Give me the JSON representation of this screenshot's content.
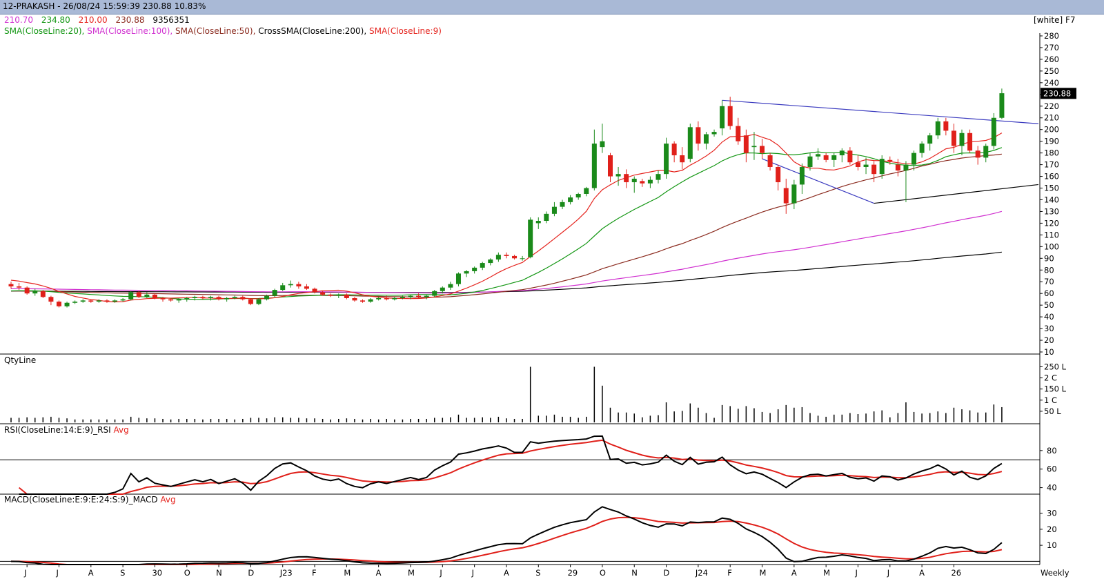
{
  "header": {
    "title": "12-PRAKASH - 26/08/24 15:59:39 230.88 10.83%",
    "ohlc": [
      "210.70",
      "234.80",
      "210.00",
      "230.88",
      "9356351"
    ],
    "indicators": [
      {
        "label": "SMA(CloseLine:20),",
        "color": "#129612"
      },
      {
        "label": "SMA(CloseLine:100),",
        "color": "#d030d0"
      },
      {
        "label": "SMA(CloseLine:50),",
        "color": "#8b2b1f"
      },
      {
        "label": "CrossSMA(CloseLine:200),",
        "color": "#000000"
      },
      {
        "label": "SMA(CloseLine:9)",
        "color": "#e5241e"
      }
    ],
    "theme": "[white] F7"
  },
  "panels": {
    "qty": {
      "label": "QtyLine"
    },
    "rsi": {
      "label": "RSI(CloseLine:14:E:9)_RSI",
      "avg": "Avg"
    },
    "macd": {
      "label": "MACD(CloseLine:E:9:E:24:S:9)_MACD",
      "avg": "Avg"
    }
  },
  "chart_data": {
    "type": "candlestick",
    "timeframe": "Weekly",
    "price_axis": {
      "ylim": [
        10,
        280
      ],
      "ticks": [
        10,
        20,
        30,
        40,
        50,
        60,
        70,
        80,
        90,
        100,
        110,
        120,
        130,
        140,
        150,
        160,
        170,
        180,
        190,
        200,
        210,
        220,
        230,
        240,
        250,
        260,
        270,
        280
      ]
    },
    "last_price": "230.88",
    "x_labels": [
      {
        "i": 2,
        "label": "J"
      },
      {
        "i": 6,
        "label": "J"
      },
      {
        "i": 10,
        "label": "A"
      },
      {
        "i": 14,
        "label": "S"
      },
      {
        "i": 18,
        "label": "30"
      },
      {
        "i": 22,
        "label": "O"
      },
      {
        "i": 26,
        "label": "N"
      },
      {
        "i": 30,
        "label": "D"
      },
      {
        "i": 34,
        "label": "J23"
      },
      {
        "i": 38,
        "label": "F"
      },
      {
        "i": 42,
        "label": "M"
      },
      {
        "i": 46,
        "label": "A"
      },
      {
        "i": 50,
        "label": "M"
      },
      {
        "i": 54,
        "label": "J"
      },
      {
        "i": 58,
        "label": "J"
      },
      {
        "i": 62,
        "label": "A"
      },
      {
        "i": 66,
        "label": "S"
      },
      {
        "i": 70,
        "label": "29"
      },
      {
        "i": 74,
        "label": "O"
      },
      {
        "i": 78,
        "label": "N"
      },
      {
        "i": 82,
        "label": "D"
      },
      {
        "i": 86,
        "label": "J24"
      },
      {
        "i": 90,
        "label": "F"
      },
      {
        "i": 94,
        "label": "M"
      },
      {
        "i": 98,
        "label": "A"
      },
      {
        "i": 102,
        "label": "M"
      },
      {
        "i": 106,
        "label": "J"
      },
      {
        "i": 110,
        "label": "J"
      },
      {
        "i": 114,
        "label": "A"
      },
      {
        "i": 118,
        "label": "26"
      }
    ],
    "candles": [
      [
        68,
        70,
        64,
        66
      ],
      [
        66,
        69,
        63,
        65
      ],
      [
        65,
        66,
        59,
        60
      ],
      [
        60,
        64,
        58,
        62
      ],
      [
        62,
        63,
        56,
        57
      ],
      [
        57,
        58,
        50,
        53
      ],
      [
        53,
        54,
        48,
        49
      ],
      [
        49,
        53,
        48,
        52
      ],
      [
        52,
        54,
        51,
        53
      ],
      [
        53,
        55,
        52,
        54
      ],
      [
        54,
        55,
        52,
        53
      ],
      [
        53,
        55,
        52,
        54
      ],
      [
        54,
        55,
        52,
        53
      ],
      [
        53,
        55,
        52,
        54
      ],
      [
        54,
        56,
        53,
        55
      ],
      [
        55,
        62,
        54,
        61
      ],
      [
        61,
        62,
        56,
        57
      ],
      [
        57,
        61,
        56,
        59
      ],
      [
        59,
        60,
        55,
        56
      ],
      [
        56,
        57,
        53,
        55
      ],
      [
        55,
        56,
        53,
        54
      ],
      [
        54,
        56,
        52,
        55
      ],
      [
        55,
        57,
        53,
        56
      ],
      [
        56,
        58,
        54,
        57
      ],
      [
        57,
        58,
        55,
        56
      ],
      [
        56,
        58,
        54,
        57
      ],
      [
        57,
        58,
        54,
        55
      ],
      [
        55,
        57,
        53,
        56
      ],
      [
        56,
        58,
        55,
        57
      ],
      [
        57,
        58,
        54,
        55
      ],
      [
        55,
        56,
        50,
        51
      ],
      [
        51,
        56,
        50,
        55
      ],
      [
        55,
        59,
        54,
        58
      ],
      [
        58,
        64,
        57,
        63
      ],
      [
        63,
        69,
        62,
        67
      ],
      [
        67,
        71,
        65,
        68
      ],
      [
        68,
        70,
        64,
        66
      ],
      [
        66,
        68,
        63,
        64
      ],
      [
        64,
        65,
        60,
        61
      ],
      [
        61,
        62,
        58,
        59
      ],
      [
        59,
        60,
        57,
        58
      ],
      [
        58,
        60,
        56,
        59
      ],
      [
        59,
        60,
        55,
        56
      ],
      [
        56,
        57,
        53,
        54
      ],
      [
        54,
        55,
        52,
        53
      ],
      [
        53,
        56,
        52,
        55
      ],
      [
        55,
        57,
        54,
        56
      ],
      [
        56,
        58,
        54,
        55
      ],
      [
        55,
        57,
        54,
        56
      ],
      [
        56,
        58,
        55,
        57
      ],
      [
        57,
        59,
        55,
        58
      ],
      [
        58,
        60,
        56,
        57
      ],
      [
        57,
        59,
        55,
        58
      ],
      [
        58,
        63,
        57,
        62
      ],
      [
        62,
        66,
        60,
        65
      ],
      [
        65,
        70,
        63,
        68
      ],
      [
        68,
        78,
        66,
        77
      ],
      [
        77,
        80,
        74,
        79
      ],
      [
        79,
        83,
        77,
        82
      ],
      [
        82,
        87,
        80,
        86
      ],
      [
        86,
        90,
        84,
        89
      ],
      [
        89,
        95,
        87,
        93
      ],
      [
        93,
        95,
        90,
        92
      ],
      [
        92,
        93,
        89,
        90
      ],
      [
        90,
        92,
        88,
        90
      ],
      [
        91,
        125,
        90,
        123
      ],
      [
        120,
        125,
        115,
        122
      ],
      [
        122,
        130,
        120,
        128
      ],
      [
        128,
        138,
        126,
        134
      ],
      [
        134,
        140,
        132,
        138
      ],
      [
        138,
        144,
        136,
        142
      ],
      [
        142,
        146,
        140,
        145
      ],
      [
        145,
        151,
        143,
        150
      ],
      [
        150,
        200,
        148,
        188
      ],
      [
        185,
        205,
        180,
        190
      ],
      [
        178,
        180,
        155,
        160
      ],
      [
        160,
        168,
        152,
        162
      ],
      [
        162,
        166,
        150,
        155
      ],
      [
        155,
        160,
        146,
        158
      ],
      [
        156,
        158,
        151,
        154
      ],
      [
        154,
        160,
        150,
        157
      ],
      [
        157,
        165,
        154,
        162
      ],
      [
        162,
        193,
        158,
        188
      ],
      [
        188,
        190,
        172,
        178
      ],
      [
        178,
        185,
        166,
        172
      ],
      [
        175,
        205,
        172,
        202
      ],
      [
        202,
        207,
        182,
        188
      ],
      [
        188,
        198,
        183,
        196
      ],
      [
        196,
        200,
        194,
        198
      ],
      [
        201,
        225,
        195,
        220
      ],
      [
        220,
        228,
        200,
        203
      ],
      [
        203,
        210,
        187,
        190
      ],
      [
        195,
        200,
        172,
        180
      ],
      [
        185,
        198,
        174,
        186
      ],
      [
        186,
        192,
        175,
        180
      ],
      [
        178,
        180,
        165,
        168
      ],
      [
        168,
        170,
        148,
        155
      ],
      [
        150,
        158,
        128,
        137
      ],
      [
        137,
        157,
        132,
        153
      ],
      [
        153,
        171,
        145,
        168
      ],
      [
        168,
        180,
        165,
        177
      ],
      [
        177,
        184,
        174,
        179
      ],
      [
        178,
        180,
        172,
        174
      ],
      [
        174,
        180,
        168,
        178
      ],
      [
        178,
        184,
        172,
        182
      ],
      [
        182,
        185,
        170,
        172
      ],
      [
        172,
        178,
        165,
        168
      ],
      [
        168,
        176,
        162,
        170
      ],
      [
        170,
        173,
        155,
        162
      ],
      [
        162,
        178,
        158,
        175
      ],
      [
        174,
        177,
        170,
        173
      ],
      [
        170,
        175,
        160,
        165
      ],
      [
        165,
        173,
        138,
        170
      ],
      [
        170,
        182,
        165,
        180
      ],
      [
        180,
        190,
        176,
        188
      ],
      [
        188,
        197,
        182,
        195
      ],
      [
        195,
        210,
        192,
        207
      ],
      [
        207,
        210,
        195,
        199
      ],
      [
        199,
        205,
        180,
        186
      ],
      [
        186,
        200,
        178,
        197
      ],
      [
        197,
        200,
        180,
        182
      ],
      [
        182,
        186,
        170,
        176
      ],
      [
        176,
        188,
        172,
        186
      ],
      [
        186,
        214,
        183,
        210
      ],
      [
        210,
        235,
        209,
        231
      ]
    ],
    "sma9_series_label": "SMA(CloseLine:9)",
    "volume": {
      "unit_ticks": [
        "50 L",
        "1 C",
        "150 L",
        "2 C",
        "250 L"
      ],
      "ylim": [
        0,
        270
      ]
    },
    "rsi": {
      "ylim": [
        33,
        97
      ],
      "ticks": [
        40,
        60,
        80
      ],
      "hline": 70
    },
    "macd": {
      "ylim": [
        -2,
        35
      ],
      "ticks": [
        10,
        20,
        30
      ],
      "hline": 0
    }
  }
}
